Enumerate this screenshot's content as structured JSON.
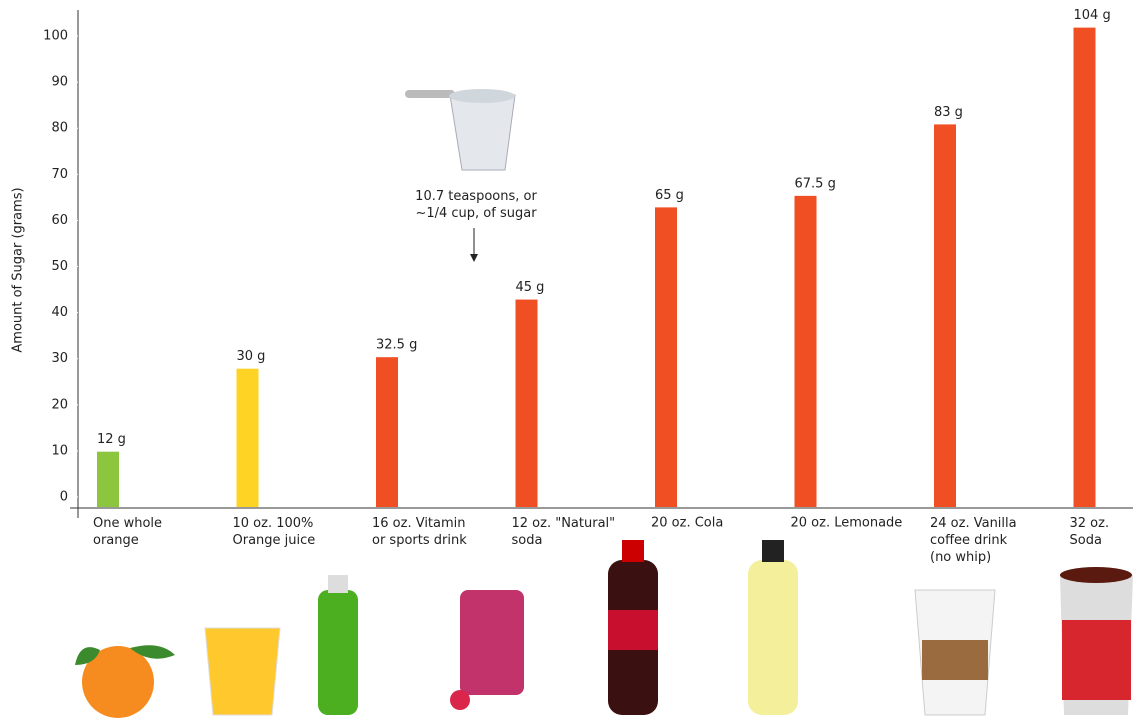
{
  "chart_data": {
    "type": "bar",
    "y_label": "Amount of Sugar (grams)",
    "categories": [
      "One whole\norange",
      "10 oz. 100%\nOrange juice",
      "16 oz. Vitamin\nor sports drink",
      "12 oz. \"Natural\"\nsoda",
      "20 oz. Cola",
      "20 oz. Lemonade",
      "24 oz. Vanilla\ncoffee drink\n(no whip)",
      "32 oz.\nSoda"
    ],
    "values": [
      12,
      30,
      32.5,
      45,
      65,
      67.5,
      83,
      104
    ],
    "value_labels": [
      "12 g",
      "30 g",
      "32.5 g",
      "45 g",
      "65 g",
      "67.5 g",
      "83 g",
      "104 g"
    ],
    "colors": [
      "#8cc63f",
      "#ffd324",
      "#f04e23",
      "#f04e23",
      "#f04e23",
      "#f04e23",
      "#f04e23",
      "#f04e23"
    ],
    "annotation": "10.7 teaspoons, or\n~1/4 cup, of sugar",
    "ylim": [
      0,
      105
    ],
    "yticks": [
      0,
      10,
      20,
      30,
      40,
      50,
      60,
      70,
      80,
      90,
      100
    ],
    "grid": false
  }
}
